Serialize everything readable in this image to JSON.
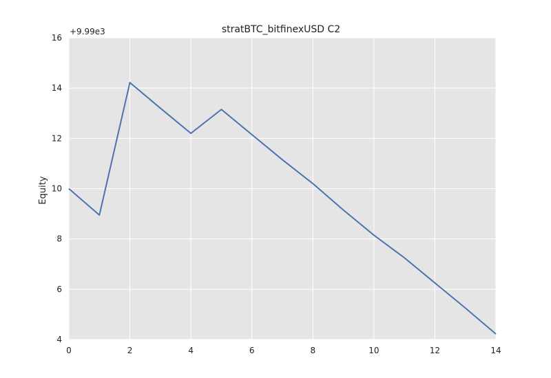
{
  "chart_data": {
    "type": "line",
    "title": "stratBTC_bitfinexUSD C2",
    "xlabel": "",
    "ylabel": "Equity",
    "y_offset_label": "+9.99e3",
    "xlim": [
      0,
      14
    ],
    "ylim": [
      4,
      16
    ],
    "xticks": [
      0,
      2,
      4,
      6,
      8,
      10,
      12,
      14
    ],
    "yticks": [
      4,
      6,
      8,
      10,
      12,
      14,
      16
    ],
    "grid": true,
    "series": [
      {
        "x": [
          0,
          1,
          2,
          3,
          4,
          5,
          6,
          7,
          8,
          9,
          10,
          11,
          12,
          13,
          14
        ],
        "values": [
          10.0,
          8.95,
          14.22,
          13.2,
          12.2,
          13.15,
          12.15,
          11.15,
          10.2,
          9.15,
          8.15,
          7.25,
          6.25,
          5.25,
          4.22
        ]
      }
    ]
  },
  "colors": {
    "plot_background": "#e5e5e5",
    "grid": "#ffffff",
    "line": "#4c72b0"
  }
}
